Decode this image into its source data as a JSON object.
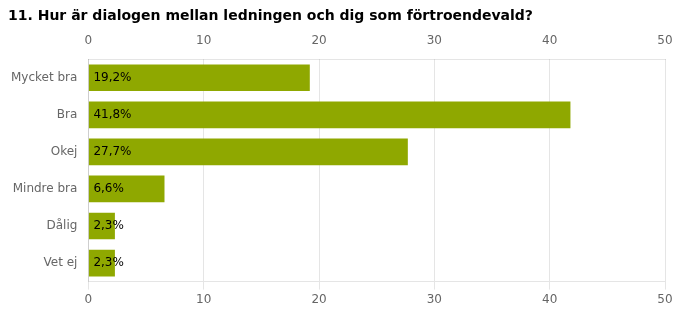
{
  "chart_data": {
    "type": "bar",
    "orientation": "horizontal",
    "title": "11. Hur är dialogen mellan ledningen och dig som förtroendevald?",
    "categories": [
      "Mycket bra",
      "Bra",
      "Okej",
      "Mindre bra",
      "Dålig",
      "Vet ej"
    ],
    "values": [
      19.2,
      41.8,
      27.7,
      6.6,
      2.3,
      2.3
    ],
    "value_labels": [
      "19,2%",
      "41,8%",
      "27,7%",
      "6,6%",
      "2,3%",
      "2,3%"
    ],
    "data_labels": true,
    "color": "#8fA800",
    "xlim": [
      0,
      50
    ],
    "xticks": [
      0,
      10,
      20,
      30,
      40,
      50
    ],
    "grid": true
  }
}
